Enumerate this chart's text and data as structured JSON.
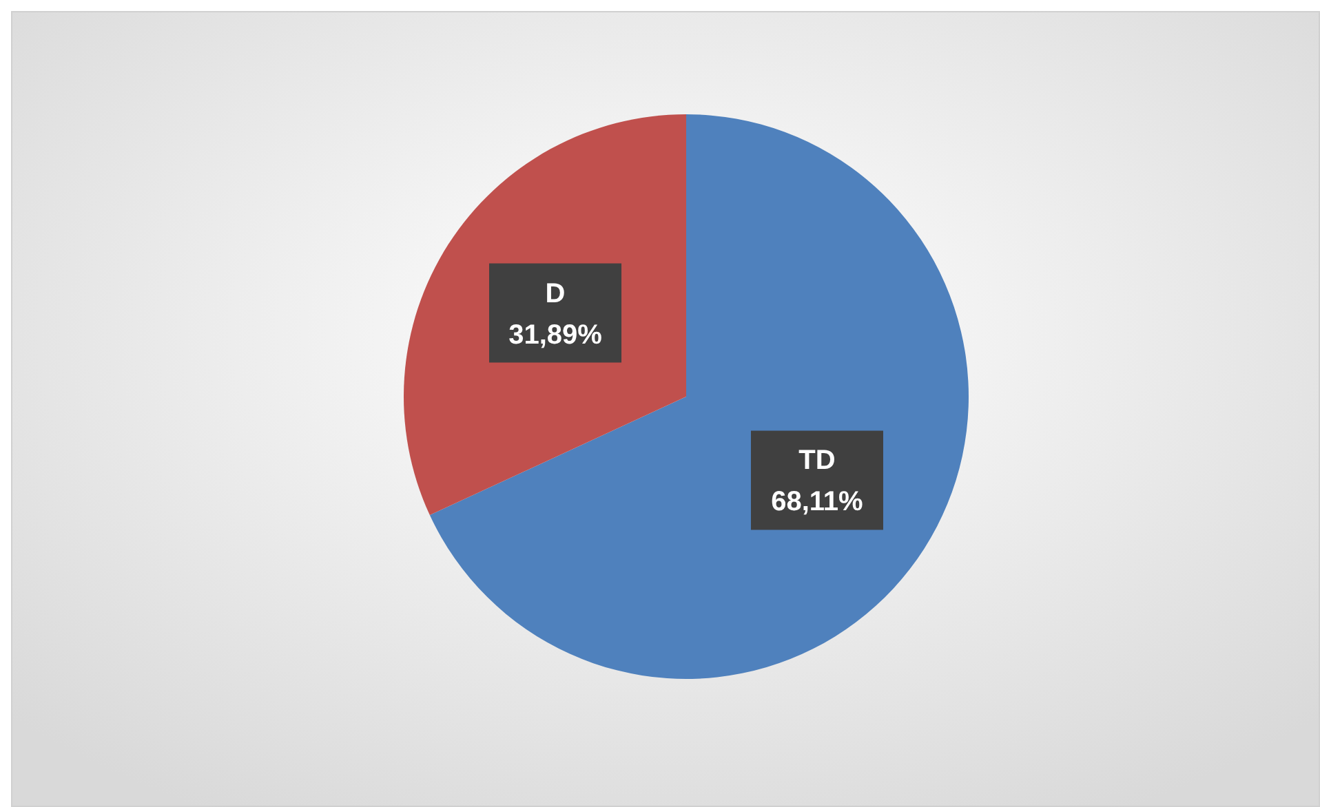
{
  "chart_data": {
    "type": "pie",
    "categories": [
      "TD",
      "D"
    ],
    "values": [
      68.11,
      31.89
    ],
    "colors": [
      "#4f81bd",
      "#c0504d"
    ],
    "value_labels": [
      "68,11%",
      "31,89%"
    ]
  }
}
